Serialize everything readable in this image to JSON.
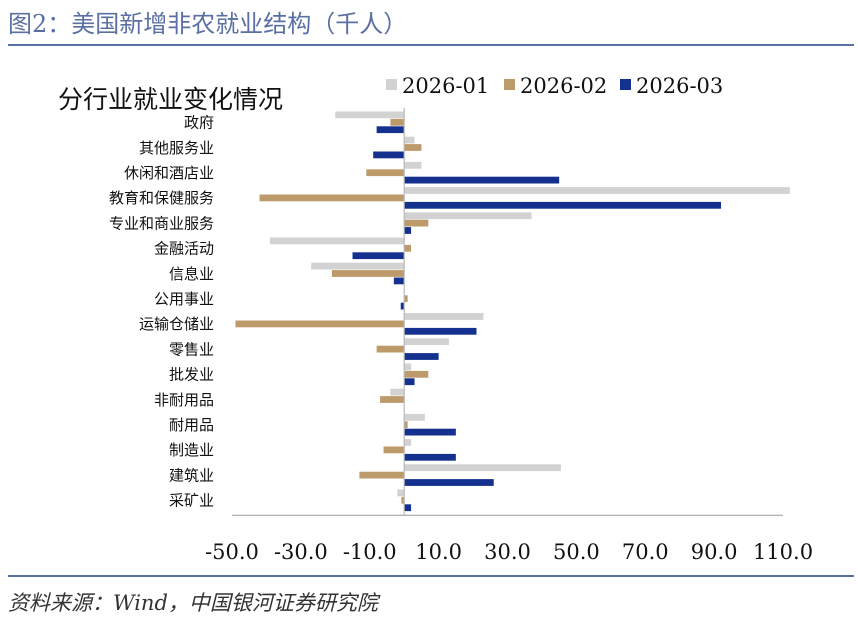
{
  "figure_title": "图2：美国新增非农就业结构（千人）",
  "source_note": "资料来源：Wind，中国银河证券研究院",
  "colors": {
    "accent": "#5a6fa3",
    "s1": "#d2d2d2",
    "s2": "#bd9a6a",
    "s3": "#14318f"
  },
  "chart_data": {
    "type": "bar",
    "orientation": "horizontal",
    "title": "分行业就业变化情况",
    "xlabel": "",
    "ylabel": "",
    "xlim": [
      -50,
      110
    ],
    "xticks": [
      "-50.0",
      "-30.0",
      "-10.0",
      "10.0",
      "30.0",
      "50.0",
      "70.0",
      "90.0",
      "110.0"
    ],
    "xtick_values": [
      -50,
      -30,
      -10,
      10,
      30,
      50,
      70,
      90,
      110
    ],
    "legend_position": "top",
    "categories": [
      "政府",
      "其他服务业",
      "休闲和酒店业",
      "教育和保健服务",
      "专业和商业服务",
      "金融活动",
      "信息业",
      "公用事业",
      "运输仓储业",
      "零售业",
      "批发业",
      "非耐用品",
      "耐用品",
      "制造业",
      "建筑业",
      "采矿业"
    ],
    "series": [
      {
        "name": "2026-01",
        "color": "#d2d2d2",
        "values": [
          -20,
          3,
          5,
          112,
          37,
          -39,
          -27,
          0,
          23,
          13,
          2,
          -4,
          6,
          2,
          45.5,
          -2
        ]
      },
      {
        "name": "2026-02",
        "color": "#bd9a6a",
        "values": [
          -4,
          5,
          -11,
          -42,
          7,
          2,
          -21,
          1,
          -49,
          -8,
          7,
          -7,
          1,
          -6,
          -13,
          -0.8
        ]
      },
      {
        "name": "2026-03",
        "color": "#14318f",
        "values": [
          -8,
          -9,
          45,
          92,
          2,
          -15,
          -3,
          -1,
          21,
          10,
          3,
          0,
          15,
          15,
          26,
          2
        ]
      }
    ]
  }
}
